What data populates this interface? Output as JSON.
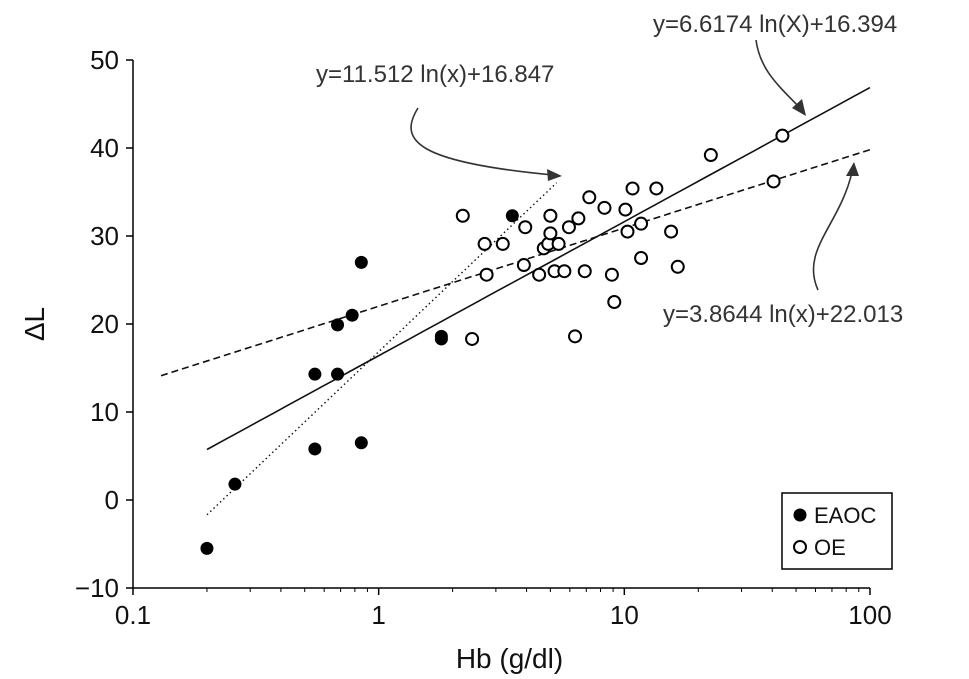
{
  "chart_data": {
    "type": "scatter",
    "xlabel": "Hb (g/dl)",
    "ylabel": "ΔL",
    "xscale": "log",
    "xlim": [
      0.1,
      100
    ],
    "ylim": [
      -10,
      50
    ],
    "grid": false,
    "legend_position": "bottom-right",
    "xticks": [
      {
        "value": 0.1,
        "label": "0.1"
      },
      {
        "value": 1,
        "label": "1"
      },
      {
        "value": 10,
        "label": "10"
      },
      {
        "value": 100,
        "label": "100"
      }
    ],
    "yticks": [
      {
        "value": -10,
        "label": "−10"
      },
      {
        "value": 0,
        "label": "0"
      },
      {
        "value": 10,
        "label": "10"
      },
      {
        "value": 20,
        "label": "20"
      },
      {
        "value": 30,
        "label": "30"
      },
      {
        "value": 40,
        "label": "40"
      },
      {
        "value": 50,
        "label": "50"
      }
    ],
    "series": [
      {
        "name": "EAOC",
        "marker": "filled-circle",
        "color": "#000000",
        "points": [
          [
            0.2,
            -5.5
          ],
          [
            0.26,
            1.8
          ],
          [
            0.55,
            5.8
          ],
          [
            0.55,
            14.3
          ],
          [
            0.68,
            14.3
          ],
          [
            0.68,
            19.9
          ],
          [
            0.78,
            21.0
          ],
          [
            0.85,
            27.0
          ],
          [
            0.85,
            6.5
          ],
          [
            1.8,
            18.3
          ],
          [
            1.8,
            18.6
          ],
          [
            3.5,
            32.3
          ]
        ]
      },
      {
        "name": "OE",
        "marker": "open-circle",
        "color": "#000000",
        "points": [
          [
            2.2,
            32.3
          ],
          [
            2.4,
            18.3
          ],
          [
            2.7,
            29.1
          ],
          [
            2.75,
            25.6
          ],
          [
            3.2,
            29.1
          ],
          [
            3.9,
            26.7
          ],
          [
            3.95,
            31.0
          ],
          [
            4.5,
            25.6
          ],
          [
            4.7,
            28.6
          ],
          [
            4.9,
            29.1
          ],
          [
            5.0,
            32.3
          ],
          [
            5.0,
            30.3
          ],
          [
            5.2,
            26.0
          ],
          [
            5.4,
            29.1
          ],
          [
            5.7,
            26.0
          ],
          [
            5.95,
            31.0
          ],
          [
            6.3,
            18.6
          ],
          [
            6.5,
            32.0
          ],
          [
            6.9,
            26.0
          ],
          [
            7.2,
            34.4
          ],
          [
            8.3,
            33.2
          ],
          [
            8.9,
            25.6
          ],
          [
            9.1,
            22.5
          ],
          [
            10.1,
            33.0
          ],
          [
            10.3,
            30.5
          ],
          [
            10.8,
            35.4
          ],
          [
            11.7,
            27.5
          ],
          [
            11.7,
            31.4
          ],
          [
            13.5,
            35.4
          ],
          [
            15.5,
            30.5
          ],
          [
            16.5,
            26.5
          ],
          [
            22.5,
            39.2
          ],
          [
            40.5,
            36.2
          ],
          [
            44.0,
            41.4
          ]
        ]
      }
    ],
    "trendlines": [
      {
        "label": "y=11.512 ln(x)+16.847",
        "style": "dotted",
        "a": 11.512,
        "b": 16.847,
        "x_range": [
          0.2,
          5.3
        ]
      },
      {
        "label": "y=6.6174 ln(X)+16.394",
        "style": "solid",
        "a": 6.6174,
        "b": 16.394,
        "x_range": [
          0.2,
          100
        ]
      },
      {
        "label": "y=3.8644 ln(x)+22.013",
        "style": "dashed",
        "a": 3.8644,
        "b": 22.013,
        "x_range": [
          0.13,
          100
        ]
      }
    ]
  }
}
